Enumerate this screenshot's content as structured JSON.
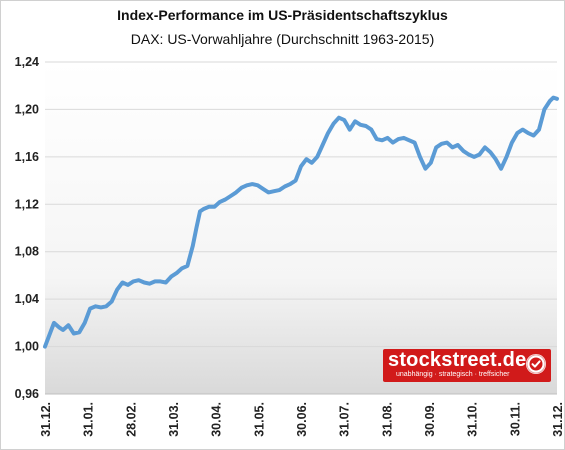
{
  "chart_data": {
    "type": "line",
    "title": "Index-Performance im US-Präsidentschaftszyklus",
    "subtitle": "DAX: US-Vorwahljahre  (Durchschnitt 1963-2015)",
    "xlabel": "",
    "ylabel": "",
    "ylim": [
      0.96,
      1.24
    ],
    "yticks": [
      "0,96",
      "1,00",
      "1,04",
      "1,08",
      "1,12",
      "1,16",
      "1,20",
      "1,24"
    ],
    "xticks": [
      "31.12.",
      "31.01.",
      "28.02.",
      "31.03.",
      "30.04.",
      "31.05.",
      "30.06.",
      "31.07.",
      "31.08.",
      "30.09.",
      "31.10.",
      "30.11.",
      "31.12."
    ],
    "grid": "horizontal",
    "series_color": "#5b9bd5",
    "series": [
      {
        "values": [
          [
            0,
            1.0
          ],
          [
            3,
            1.012
          ],
          [
            5,
            1.02
          ],
          [
            8,
            1.016
          ],
          [
            10,
            1.014
          ],
          [
            13,
            1.018
          ],
          [
            16,
            1.011
          ],
          [
            19,
            1.012
          ],
          [
            22,
            1.02
          ],
          [
            25,
            1.032
          ],
          [
            28,
            1.034
          ],
          [
            31,
            1.033
          ],
          [
            34,
            1.034
          ],
          [
            37,
            1.038
          ],
          [
            40,
            1.048
          ],
          [
            43,
            1.054
          ],
          [
            46,
            1.052
          ],
          [
            49,
            1.055
          ],
          [
            52,
            1.056
          ],
          [
            55,
            1.054
          ],
          [
            58,
            1.053
          ],
          [
            61,
            1.055
          ],
          [
            64,
            1.055
          ],
          [
            67,
            1.054
          ],
          [
            70,
            1.059
          ],
          [
            73,
            1.062
          ],
          [
            76,
            1.066
          ],
          [
            79,
            1.068
          ],
          [
            82,
            1.085
          ],
          [
            84,
            1.1
          ],
          [
            86,
            1.114
          ],
          [
            88,
            1.116
          ],
          [
            91,
            1.118
          ],
          [
            94,
            1.118
          ],
          [
            97,
            1.122
          ],
          [
            100,
            1.124
          ],
          [
            103,
            1.127
          ],
          [
            106,
            1.13
          ],
          [
            109,
            1.134
          ],
          [
            112,
            1.136
          ],
          [
            115,
            1.137
          ],
          [
            118,
            1.136
          ],
          [
            121,
            1.133
          ],
          [
            124,
            1.13
          ],
          [
            127,
            1.131
          ],
          [
            130,
            1.132
          ],
          [
            133,
            1.135
          ],
          [
            136,
            1.137
          ],
          [
            139,
            1.14
          ],
          [
            142,
            1.152
          ],
          [
            145,
            1.158
          ],
          [
            148,
            1.155
          ],
          [
            151,
            1.16
          ],
          [
            154,
            1.17
          ],
          [
            157,
            1.18
          ],
          [
            160,
            1.188
          ],
          [
            163,
            1.193
          ],
          [
            166,
            1.191
          ],
          [
            169,
            1.183
          ],
          [
            172,
            1.19
          ],
          [
            175,
            1.187
          ],
          [
            178,
            1.186
          ],
          [
            181,
            1.183
          ],
          [
            184,
            1.175
          ],
          [
            187,
            1.174
          ],
          [
            190,
            1.176
          ],
          [
            193,
            1.172
          ],
          [
            196,
            1.175
          ],
          [
            199,
            1.176
          ],
          [
            202,
            1.174
          ],
          [
            205,
            1.172
          ],
          [
            208,
            1.16
          ],
          [
            211,
            1.15
          ],
          [
            214,
            1.155
          ],
          [
            217,
            1.168
          ],
          [
            220,
            1.171
          ],
          [
            223,
            1.172
          ],
          [
            226,
            1.168
          ],
          [
            229,
            1.17
          ],
          [
            232,
            1.165
          ],
          [
            235,
            1.162
          ],
          [
            238,
            1.16
          ],
          [
            241,
            1.162
          ],
          [
            244,
            1.168
          ],
          [
            247,
            1.164
          ],
          [
            250,
            1.158
          ],
          [
            253,
            1.15
          ],
          [
            256,
            1.16
          ],
          [
            259,
            1.172
          ],
          [
            262,
            1.18
          ],
          [
            265,
            1.183
          ],
          [
            268,
            1.18
          ],
          [
            271,
            1.178
          ],
          [
            274,
            1.183
          ],
          [
            277,
            1.2
          ],
          [
            280,
            1.207
          ],
          [
            282,
            1.21
          ],
          [
            284,
            1.209
          ]
        ]
      }
    ],
    "x_domain": [
      0,
      284
    ]
  },
  "branding": {
    "name": "stockstreet.de",
    "tagline": "unabhängig · strategisch · treffsicher",
    "accent": "#d11a1a"
  }
}
